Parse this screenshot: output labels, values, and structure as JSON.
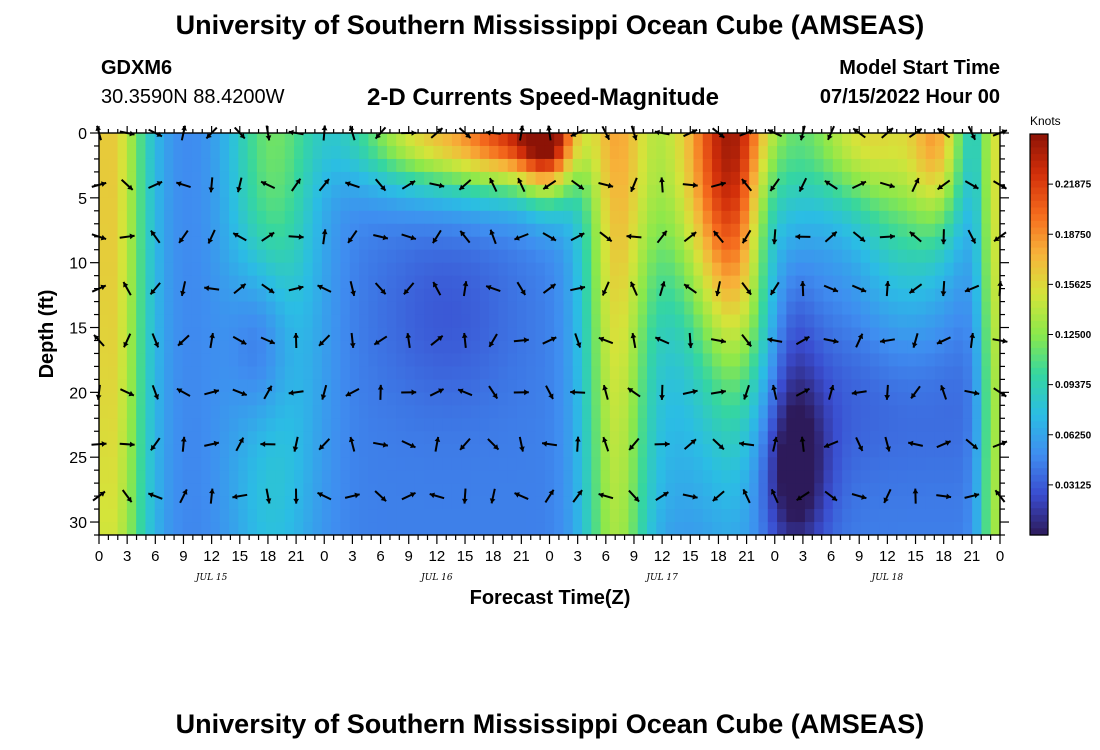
{
  "header": {
    "title": "University of Southern Mississippi Ocean Cube (AMSEAS)",
    "station": "GDXM6",
    "coords": "30.3590N  88.4200W",
    "chart_title": "2-D Currents Speed-Magnitude",
    "start_label": "Model Start Time",
    "start_value": "07/15/2022 Hour 00"
  },
  "footer": {
    "title": "University of Southern Mississippi Ocean Cube (AMSEAS)"
  },
  "colors": {
    "colormap": [
      "#2d1a5a",
      "#3a4ccf",
      "#3f8df0",
      "#2bbde4",
      "#35d6a0",
      "#8be84b",
      "#d4e43a",
      "#f7b33a",
      "#f56a1d",
      "#d22f0a",
      "#8c1306"
    ]
  },
  "chart_data": {
    "type": "heatmap",
    "title": "2-D Currents Speed-Magnitude",
    "xlabel": "Forecast Time(Z)",
    "ylabel": "Depth (ft)",
    "x_range": [
      0,
      96
    ],
    "y_range": [
      0,
      31
    ],
    "x_tick_labels": [
      "0",
      "3",
      "6",
      "9",
      "12",
      "15",
      "18",
      "21",
      "0",
      "3",
      "6",
      "9",
      "12",
      "15",
      "18",
      "21",
      "0",
      "3",
      "6",
      "9",
      "12",
      "15",
      "18",
      "21",
      "0",
      "3",
      "6",
      "9",
      "12",
      "15",
      "18",
      "21",
      "0"
    ],
    "y_ticks": [
      0,
      5,
      10,
      15,
      20,
      25,
      30
    ],
    "date_labels": [
      "JUL 15",
      "JUL 16",
      "JUL 17",
      "JUL 18"
    ],
    "colorbar": {
      "unit": "Knots",
      "range": [
        0.0,
        0.25
      ],
      "tick_values": [
        0.03125,
        0.0625,
        0.09375,
        0.125,
        0.15625,
        0.1875,
        0.21875
      ],
      "tick_labels": [
        "0.03125",
        "0.06250",
        "0.09375",
        "0.12500",
        "0.15625",
        "0.18750",
        "0.21875"
      ]
    },
    "arrow_depths": [
      0,
      4,
      8,
      12,
      16,
      20,
      24,
      28
    ],
    "arrow_hours": [
      0,
      3,
      6,
      9,
      12,
      15,
      18,
      21,
      24,
      27,
      30,
      33,
      36,
      39,
      42,
      45,
      48,
      51,
      54,
      57,
      60,
      63,
      66,
      69,
      72,
      75,
      78,
      81,
      84,
      87,
      90,
      93,
      96
    ]
  }
}
